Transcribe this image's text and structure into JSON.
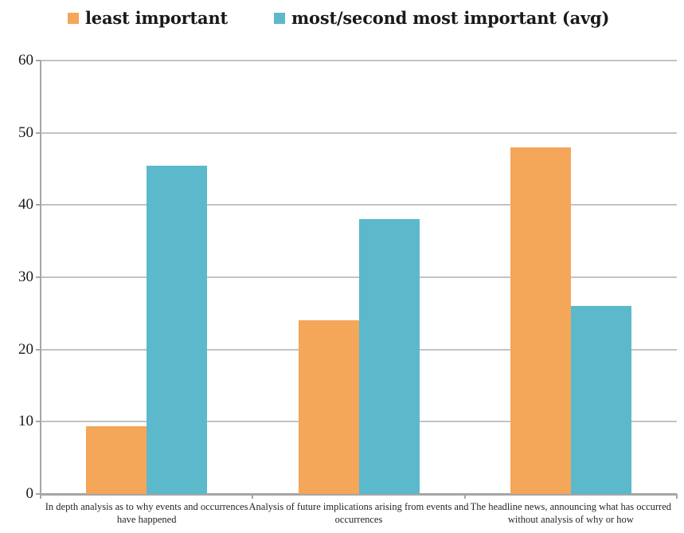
{
  "chart_data": {
    "type": "bar",
    "title": "",
    "xlabel": "",
    "ylabel": "",
    "categories": [
      "In depth analysis as to why events and occurrences have happened",
      "Analysis of future implications arising from events and occurrences",
      "The headline news, announcing what has occurred without analysis of why or how"
    ],
    "series": [
      {
        "name": "least important",
        "color": "#F4A659",
        "values": [
          9.4,
          24,
          48
        ]
      },
      {
        "name": "most/second most important (avg)",
        "color": "#5BB9CB",
        "values": [
          45.4,
          38,
          26
        ]
      }
    ],
    "ylim": [
      0,
      60
    ],
    "yticks": [
      0,
      10,
      20,
      30,
      40,
      50,
      60
    ],
    "grid": true,
    "legend_position": "top"
  },
  "colors": {
    "gridline": "#C3C3C3",
    "axis": "#A6A6A6",
    "text": "#1A1A1A",
    "background": "#FFFFFF"
  }
}
